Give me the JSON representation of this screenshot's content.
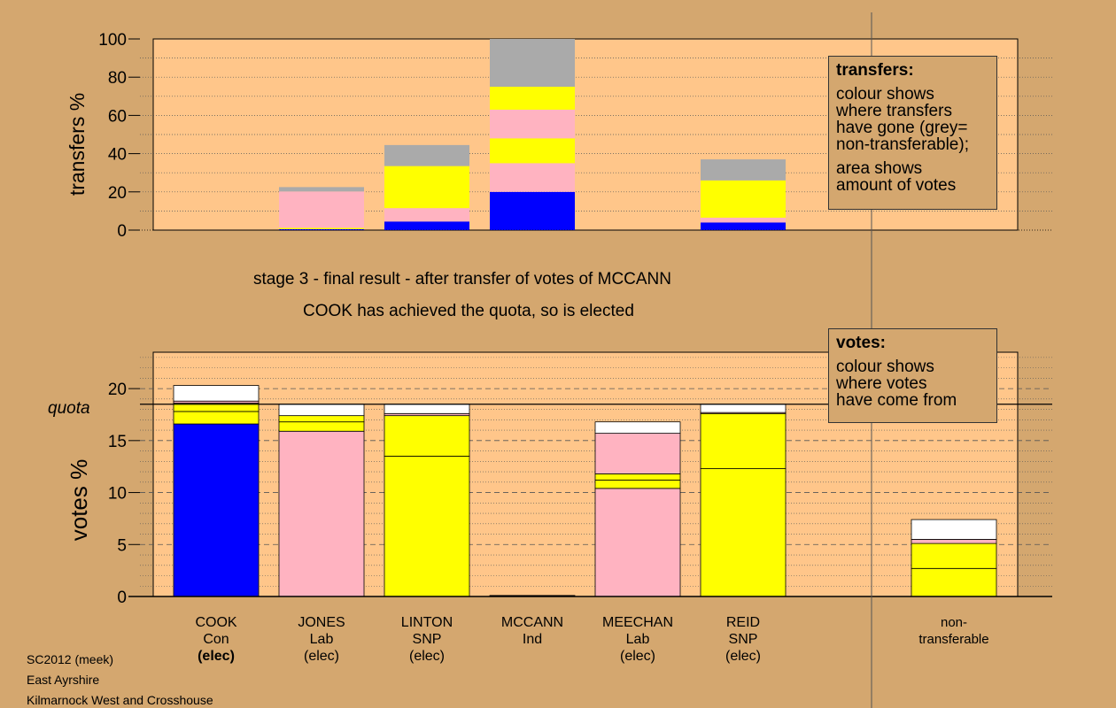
{
  "chart_data": [
    {
      "type": "bar",
      "stacked": true,
      "ylabel": "transfers %",
      "ylim": [
        0,
        100
      ],
      "yticks": [
        0,
        20,
        40,
        60,
        80,
        100
      ],
      "categories": [
        "COOK",
        "JONES",
        "LINTON",
        "MCCANN",
        "MEECHAN",
        "REID"
      ],
      "segments": [
        [],
        [
          {
            "color": "#0000FF",
            "value": 0.5
          },
          {
            "color": "#FFFF00",
            "value": 0.7
          },
          {
            "color": "#FFB3C1",
            "value": 19.0
          },
          {
            "color": "#AAAAAA",
            "value": 2.3
          }
        ],
        [
          {
            "color": "#0000FF",
            "value": 4.5
          },
          {
            "color": "#FFB3C1",
            "value": 7.0
          },
          {
            "color": "#FFFF00",
            "value": 22.0
          },
          {
            "color": "#AAAAAA",
            "value": 11.0
          }
        ],
        [
          {
            "color": "#0000FF",
            "value": 20.0
          },
          {
            "color": "#FFB3C1",
            "value": 15.0
          },
          {
            "color": "#FFFF00",
            "value": 13.0
          },
          {
            "color": "#FFB3C1",
            "value": 15.0
          },
          {
            "color": "#FFFF00",
            "value": 12.0
          },
          {
            "color": "#AAAAAA",
            "value": 25.0
          }
        ],
        [],
        [
          {
            "color": "#0000FF",
            "value": 4.0
          },
          {
            "color": "#FFB3C1",
            "value": 2.5
          },
          {
            "color": "#FFFF00",
            "value": 19.5
          },
          {
            "color": "#AAAAAA",
            "value": 11.0
          }
        ]
      ],
      "legend_box": {
        "title": "transfers:",
        "lines1": [
          "colour shows",
          "where transfers",
          "have gone (grey=",
          "non-transferable);"
        ],
        "lines2": [
          "area shows",
          "amount of votes"
        ]
      }
    },
    {
      "type": "bar",
      "stacked": true,
      "ylabel": "votes %",
      "ylim": [
        0,
        23.5
      ],
      "yticks": [
        0,
        5,
        10,
        15,
        20
      ],
      "quota": 18.5,
      "quota_label": "quota",
      "categories": [
        {
          "name": "COOK",
          "party": "Con",
          "status": "(elec)",
          "bold": true
        },
        {
          "name": "JONES",
          "party": "Lab",
          "status": "(elec)",
          "bold": false
        },
        {
          "name": "LINTON",
          "party": "SNP",
          "status": "(elec)",
          "bold": false
        },
        {
          "name": "MCCANN",
          "party": "Ind",
          "status": "",
          "bold": false
        },
        {
          "name": "MEECHAN",
          "party": "Lab",
          "status": "(elec)",
          "bold": false
        },
        {
          "name": "REID",
          "party": "SNP",
          "status": "(elec)",
          "bold": false
        },
        {
          "name": "",
          "party": "",
          "status": "",
          "bold": false
        },
        {
          "name": "non-",
          "party": "transferable",
          "status": "",
          "bold": false
        }
      ],
      "segments": [
        [
          {
            "color": "#0000FF",
            "value": 16.6
          },
          {
            "color": "#FFFF00",
            "value": 1.2
          },
          {
            "color": "#FFFF00",
            "value": 0.8
          },
          {
            "color": "#FFB3C1",
            "value": 0.2
          },
          {
            "color": "#FFFFFF",
            "value": 1.5
          }
        ],
        [
          {
            "color": "#FFB3C1",
            "value": 15.9
          },
          {
            "color": "#FFFF00",
            "value": 0.9
          },
          {
            "color": "#FFFF00",
            "value": 0.6
          },
          {
            "color": "#FFFFFF",
            "value": 1.1
          }
        ],
        [
          {
            "color": "#FFFF00",
            "value": 13.5
          },
          {
            "color": "#FFFF00",
            "value": 3.9
          },
          {
            "color": "#FFB3C1",
            "value": 0.2
          },
          {
            "color": "#FFFFFF",
            "value": 0.9
          }
        ],
        [
          {
            "color": "#000000",
            "value": 0.1
          }
        ],
        [
          {
            "color": "#FFB3C1",
            "value": 10.4
          },
          {
            "color": "#FFFF00",
            "value": 0.8
          },
          {
            "color": "#FFFF00",
            "value": 0.6
          },
          {
            "color": "#FFB3C1",
            "value": 3.9
          },
          {
            "color": "#FFFFFF",
            "value": 1.1
          }
        ],
        [
          {
            "color": "#FFFF00",
            "value": 12.3
          },
          {
            "color": "#FFFF00",
            "value": 5.3
          },
          {
            "color": "#FFB3C1",
            "value": 0.1
          },
          {
            "color": "#FFFFFF",
            "value": 0.8
          }
        ],
        [],
        [
          {
            "color": "#FFFF00",
            "value": 2.7
          },
          {
            "color": "#FFFF00",
            "value": 2.4
          },
          {
            "color": "#FFB3C1",
            "value": 0.4
          },
          {
            "color": "#FFFFFF",
            "value": 1.9
          }
        ]
      ],
      "legend_box": {
        "title": "votes:",
        "lines1": [
          "colour shows",
          "where votes",
          "have come from"
        ]
      }
    }
  ],
  "titles": {
    "line1": "stage 3 - final result - after transfer of votes of MCCANN",
    "line2": "COOK has achieved the quota, so is elected"
  },
  "footer": {
    "line1": "SC2012 (meek)",
    "line2": "East Ayrshire",
    "line3": "Kilmarnock West and Crosshouse"
  }
}
